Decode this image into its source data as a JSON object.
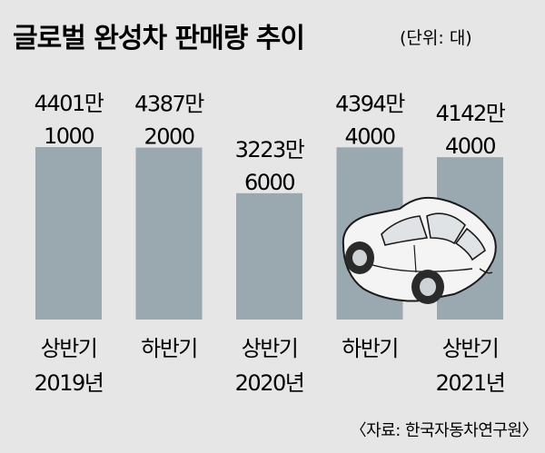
{
  "header": {
    "title": "글로벌 완성차 판매량 추이",
    "unit": "(단위: 대)"
  },
  "source": "〈자료: 한국자동차연구원〉",
  "colors": {
    "background": "#e6e6e6",
    "bar": "#9aa8b0",
    "car_body": "#f4f4f4",
    "car_outline": "#1a1a1a",
    "text": "#111111"
  },
  "chart_data": {
    "type": "bar",
    "title": "글로벌 완성차 판매량 추이",
    "unit": "(단위: 대)",
    "categories": [
      "상반기 2019년",
      "하반기",
      "상반기 2020년",
      "하반기",
      "상반기 2021년"
    ],
    "category_labels": [
      [
        "상반기",
        "2019년"
      ],
      [
        "하반기",
        ""
      ],
      [
        "상반기",
        "2020년"
      ],
      [
        "하반기",
        ""
      ],
      [
        "상반기",
        "2021년"
      ]
    ],
    "values": [
      44011000,
      43872000,
      32236000,
      43944000,
      41424000
    ],
    "value_labels": [
      [
        "4401만",
        "1000"
      ],
      [
        "4387만",
        "2000"
      ],
      [
        "3223만",
        "6000"
      ],
      [
        "4394만",
        "4000"
      ],
      [
        "4142만",
        "4000"
      ]
    ],
    "grid": false,
    "legend": "none",
    "decoration_icon": "car-icon"
  }
}
